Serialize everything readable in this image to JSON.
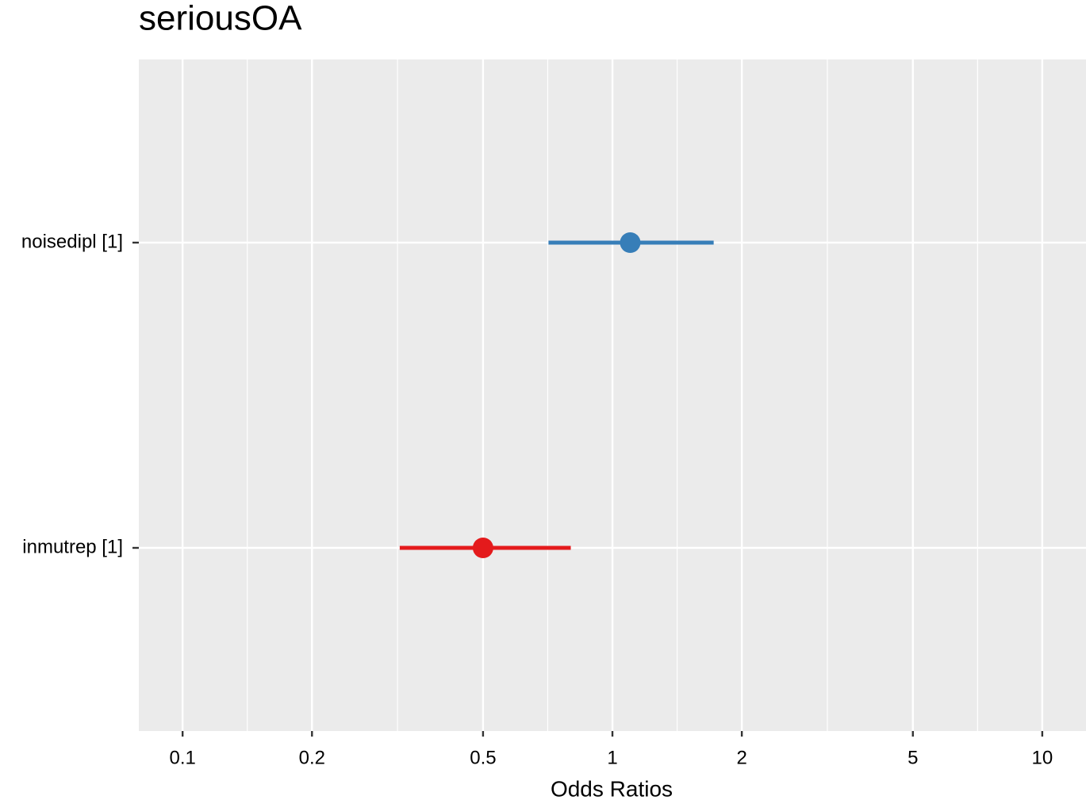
{
  "chart_data": {
    "type": "forest",
    "title": "seriousOA",
    "x_label": "Odds Ratios",
    "categories": [
      "noisedipl [1]",
      "inmutrep [1]"
    ],
    "values": [
      1.1,
      0.5
    ],
    "ci_lower": [
      0.71,
      0.32
    ],
    "ci_upper": [
      1.72,
      0.8
    ],
    "colors": [
      "#377eb8",
      "#e41a1c"
    ],
    "xlim": [
      0.0791,
      12.64
    ],
    "xticks": [
      0.1,
      0.2,
      0.5,
      1,
      2,
      5,
      10
    ],
    "log_x": true,
    "grid": true
  }
}
